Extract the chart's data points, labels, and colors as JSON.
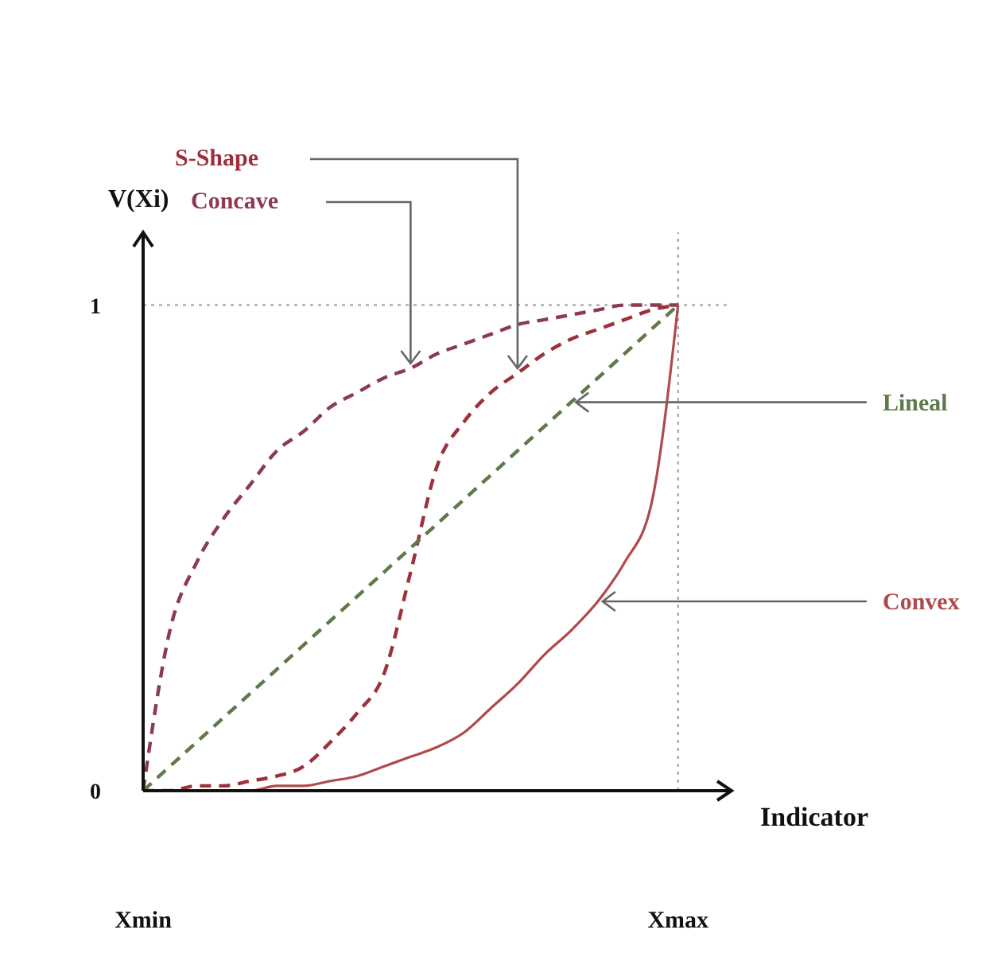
{
  "chart_data": {
    "type": "line",
    "xlabel": "Indicator",
    "ylabel": "V(Xi)",
    "categories": [
      "Xmin",
      null,
      null,
      null,
      null,
      null,
      null,
      null,
      null,
      null,
      null,
      null,
      null,
      null,
      null,
      null,
      null,
      null,
      null,
      null,
      "Xmax",
      null,
      null
    ],
    "ylim": [
      0,
      1.15
    ],
    "yticks": [
      0,
      1
    ],
    "grid": false,
    "legend": false,
    "marker": "none",
    "ref_lines": [
      {
        "axis": "y",
        "value": 1,
        "color": "#999999",
        "line_style": "dotted"
      },
      {
        "axis": "x",
        "value": "Xmax",
        "color": "#999999",
        "line_style": "dotted"
      }
    ],
    "series": [
      {
        "name": "Concave",
        "color": "#8b3a4f",
        "line_style": "dashed",
        "values": [
          0,
          0.33,
          0.47,
          0.56,
          0.63,
          0.7,
          0.74,
          0.79,
          0.82,
          0.85,
          0.87,
          0.9,
          0.92,
          0.94,
          0.96,
          0.97,
          0.98,
          0.99,
          1,
          1,
          1,
          null,
          null
        ]
      },
      {
        "name": "S-Shape",
        "color": "#9e2f3b",
        "line_style": "dashed",
        "values": [
          0,
          0,
          0.01,
          0.01,
          0.02,
          0.03,
          0.05,
          0.1,
          0.16,
          0.24,
          0.45,
          0.67,
          0.76,
          0.82,
          0.86,
          0.9,
          0.93,
          0.95,
          0.97,
          0.99,
          1,
          null,
          null
        ]
      },
      {
        "name": "Lineal",
        "color": "#5e7a4a",
        "line_style": "dashed",
        "values": [
          0,
          0.05,
          0.1,
          0.15,
          0.2,
          0.25,
          0.3,
          0.35,
          0.4,
          0.45,
          0.5,
          0.55,
          0.6,
          0.65,
          0.7,
          0.75,
          0.8,
          0.85,
          0.9,
          0.95,
          1,
          null,
          null
        ]
      },
      {
        "name": "Convex",
        "color": "#b04a4a",
        "line_style": "solid",
        "values": [
          0,
          0,
          0,
          0,
          0,
          0.01,
          0.01,
          0.02,
          0.03,
          0.05,
          0.07,
          0.09,
          0.12,
          0.17,
          0.22,
          0.28,
          0.33,
          0.39,
          0.47,
          0.59,
          1,
          null,
          null
        ]
      }
    ]
  }
}
